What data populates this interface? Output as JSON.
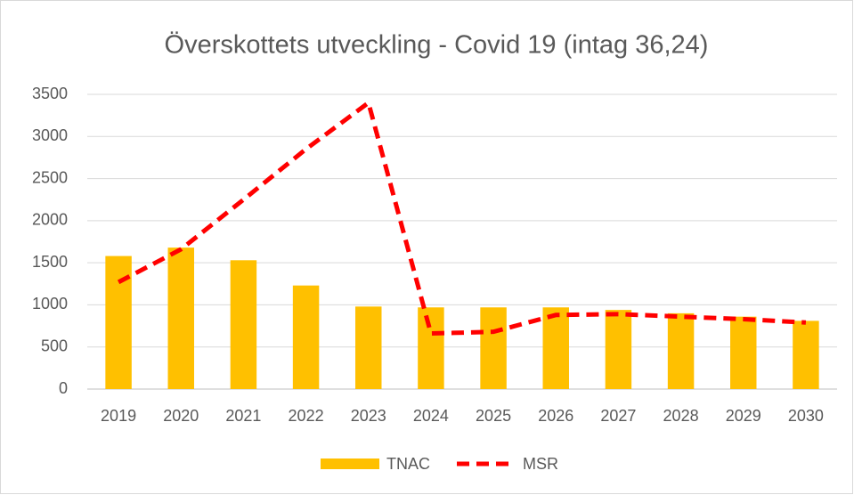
{
  "chart_data": {
    "type": "combo",
    "title": "Överskottets utveckling - Covid 19 (intag 36,24)",
    "categories": [
      "2019",
      "2020",
      "2021",
      "2022",
      "2023",
      "2024",
      "2025",
      "2026",
      "2027",
      "2028",
      "2029",
      "2030"
    ],
    "series": [
      {
        "name": "TNAC",
        "type": "bar",
        "color": "#ffc000",
        "values": [
          1580,
          1680,
          1530,
          1230,
          980,
          970,
          970,
          970,
          940,
          900,
          860,
          810
        ]
      },
      {
        "name": "MSR",
        "type": "line",
        "dashed": true,
        "color": "#ff0000",
        "values": [
          1270,
          1660,
          2250,
          2850,
          3400,
          660,
          680,
          880,
          890,
          860,
          830,
          790
        ]
      }
    ],
    "ylim": [
      0,
      3500
    ],
    "yticks": [
      0,
      500,
      1000,
      1500,
      2000,
      2500,
      3000,
      3500
    ],
    "grid": true,
    "legend": "bottom"
  }
}
